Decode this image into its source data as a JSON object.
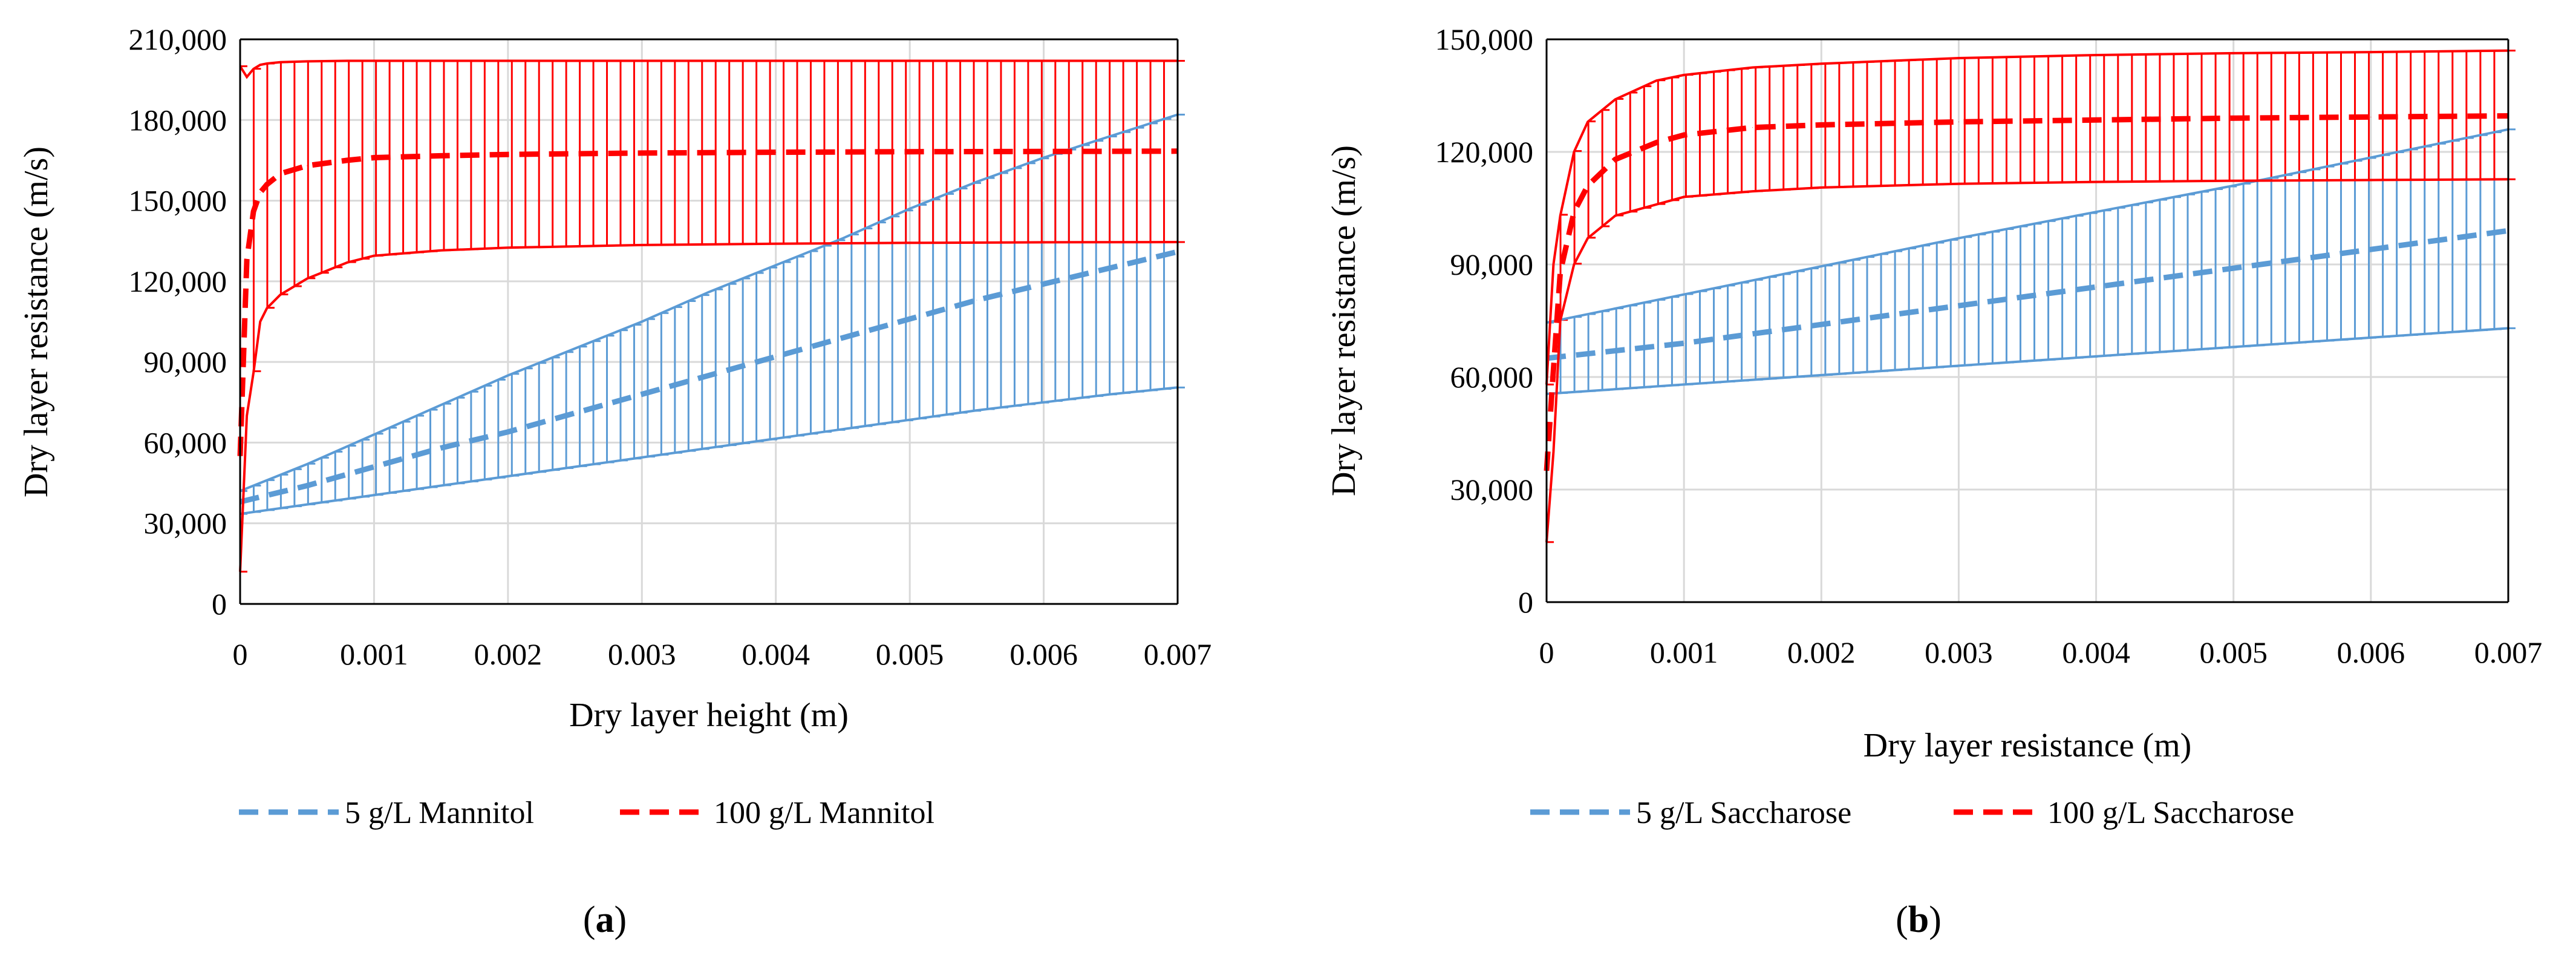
{
  "chart_data": [
    {
      "type": "line",
      "panel_label": "a",
      "title": "",
      "xlabel": "Dry layer height (m)",
      "ylabel": "Dry layer resistance (m/s)",
      "xlim": [
        0,
        0.007
      ],
      "ylim": [
        0,
        210000
      ],
      "grid": true,
      "x_ticks": [
        0,
        0.001,
        0.002,
        0.003,
        0.004,
        0.005,
        0.006,
        0.007
      ],
      "x_tick_labels": [
        "0",
        "0.001",
        "0.002",
        "0.003",
        "0.004",
        "0.005",
        "0.006",
        "0.007"
      ],
      "y_ticks": [
        0,
        30000,
        60000,
        90000,
        120000,
        150000,
        180000,
        210000
      ],
      "y_tick_labels": [
        "0",
        "30,000",
        "60,000",
        "90,000",
        "120,000",
        "150,000",
        "180,000",
        "210,000"
      ],
      "legend_position": "bottom",
      "series": [
        {
          "name": "5 g/L Mannitol",
          "color": "#5b9bd5",
          "x": [
            0,
            0.0005,
            0.001,
            0.0015,
            0.002,
            0.0025,
            0.003,
            0.0035,
            0.004,
            0.0045,
            0.005,
            0.0055,
            0.006,
            0.0065,
            0.007
          ],
          "y": [
            38000,
            44000,
            51000,
            58000,
            64000,
            71000,
            78000,
            85000,
            92000,
            99000,
            106000,
            113000,
            119000,
            125000,
            131000
          ],
          "lower": [
            33500,
            37000,
            40500,
            44000,
            47500,
            51000,
            54500,
            58000,
            61500,
            65000,
            68500,
            72000,
            75000,
            78000,
            80500
          ],
          "upper": [
            42000,
            52000,
            63000,
            74000,
            85000,
            95000,
            105000,
            116000,
            126000,
            136000,
            147000,
            157000,
            166000,
            174000,
            182000
          ],
          "error_bar_count": 70
        },
        {
          "name": "100 g/L Mannitol",
          "color": "#ff0000",
          "x": [
            0,
            5e-05,
            0.0001,
            0.00015,
            0.0002,
            0.0003,
            0.0005,
            0.0008,
            0.001,
            0.0015,
            0.002,
            0.003,
            0.004,
            0.005,
            0.006,
            0.007
          ],
          "y": [
            55000,
            128000,
            146000,
            153000,
            156000,
            160000,
            163000,
            165000,
            166000,
            166700,
            167200,
            167700,
            168000,
            168200,
            168300,
            168400
          ],
          "lower": [
            12000,
            70000,
            86000,
            105000,
            110000,
            115000,
            121000,
            127000,
            129500,
            131500,
            132500,
            133500,
            134000,
            134300,
            134500,
            134600
          ],
          "upper": [
            200000,
            196000,
            199000,
            200500,
            201000,
            201500,
            201800,
            202000,
            202000,
            202000,
            202000,
            202000,
            202000,
            202000,
            202000,
            202000
          ],
          "error_bar_count": 70
        }
      ]
    },
    {
      "type": "line",
      "panel_label": "b",
      "title": "",
      "xlabel": "Dry layer resistance (m)",
      "ylabel": "Dry layer resistance (m/s)",
      "xlim": [
        0,
        0.007
      ],
      "ylim": [
        0,
        150000
      ],
      "grid": true,
      "x_ticks": [
        0,
        0.001,
        0.002,
        0.003,
        0.004,
        0.005,
        0.006,
        0.007
      ],
      "x_tick_labels": [
        "0",
        "0.001",
        "0.002",
        "0.003",
        "0.004",
        "0.005",
        "0.006",
        "0.007"
      ],
      "y_ticks": [
        0,
        30000,
        60000,
        90000,
        120000,
        150000
      ],
      "y_tick_labels": [
        "0",
        "30,000",
        "60,000",
        "90,000",
        "120,000",
        "150,000"
      ],
      "legend_position": "bottom",
      "series": [
        {
          "name": "5 g/L Saccharose",
          "color": "#5b9bd5",
          "x": [
            0,
            0.001,
            0.002,
            0.003,
            0.004,
            0.005,
            0.006,
            0.007
          ],
          "y": [
            65000,
            69000,
            74000,
            79000,
            84000,
            89000,
            94000,
            99000
          ],
          "lower": [
            55500,
            58000,
            60500,
            63000,
            65500,
            68000,
            70500,
            73000
          ],
          "upper": [
            74500,
            82000,
            89500,
            97000,
            104000,
            111000,
            118500,
            126000
          ],
          "error_bar_count": 70
        },
        {
          "name": "100 g/L Saccharose",
          "color": "#ff0000",
          "x": [
            0,
            5e-05,
            0.0001,
            0.0002,
            0.0003,
            0.0005,
            0.0008,
            0.001,
            0.0015,
            0.002,
            0.003,
            0.004,
            0.005,
            0.006,
            0.007
          ],
          "y": [
            35000,
            62000,
            88000,
            104000,
            111000,
            118000,
            122500,
            124500,
            126500,
            127200,
            128000,
            128500,
            129000,
            129300,
            129600
          ],
          "lower": [
            16000,
            40000,
            75000,
            90000,
            97000,
            103000,
            106000,
            108000,
            109500,
            110500,
            111500,
            112000,
            112300,
            112500,
            112700
          ],
          "upper": [
            58000,
            90000,
            103000,
            120000,
            128000,
            134000,
            139000,
            140500,
            142500,
            143500,
            145000,
            145800,
            146300,
            146600,
            147000
          ],
          "error_bar_count": 70
        }
      ]
    }
  ]
}
